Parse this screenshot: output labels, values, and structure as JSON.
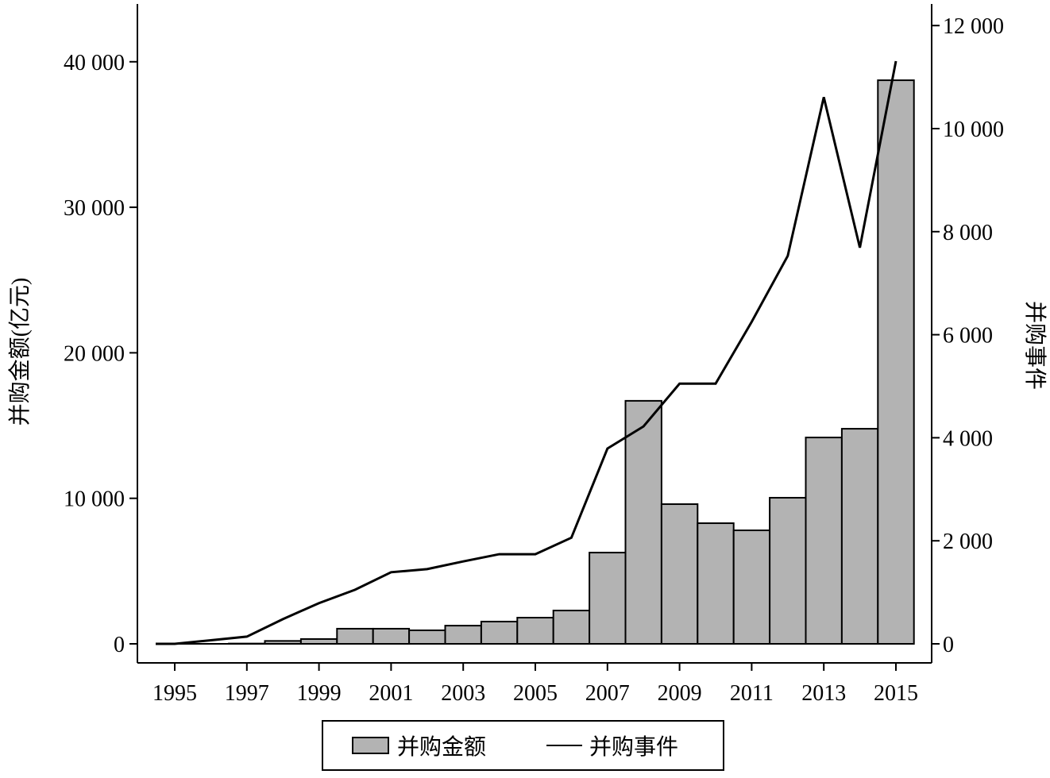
{
  "chart_data": {
    "type": "bar+line",
    "categories": [
      "1995",
      "1996",
      "1997",
      "1998",
      "1999",
      "2000",
      "2001",
      "2002",
      "2003",
      "2004",
      "2005",
      "2006",
      "2007",
      "2008",
      "2009",
      "2010",
      "2011",
      "2012",
      "2013",
      "2014",
      "2015"
    ],
    "x_tick_labels": [
      "1995",
      "1997",
      "1999",
      "2001",
      "2003",
      "2005",
      "2007",
      "2009",
      "2011",
      "2013",
      "2015"
    ],
    "series": [
      {
        "name": "并购金额",
        "type": "bar",
        "axis": "left",
        "color": "#b3b3b3",
        "values": [
          0,
          0,
          20,
          200,
          330,
          1040,
          1040,
          930,
          1250,
          1530,
          1800,
          2290,
          6270,
          16700,
          9600,
          8290,
          7800,
          10040,
          14180,
          14780,
          38730
        ]
      },
      {
        "name": "并购事件",
        "type": "line",
        "axis": "right",
        "color": "#000000",
        "values": [
          0,
          70,
          140,
          480,
          790,
          1050,
          1390,
          1450,
          1600,
          1740,
          1740,
          2060,
          3790,
          4220,
          5050,
          5050,
          6250,
          7530,
          10610,
          7690,
          11310
        ]
      }
    ],
    "left_axis": {
      "label": "并购金额(亿元)",
      "ylim": [
        0,
        43000
      ],
      "ticks": [
        0,
        10000,
        20000,
        30000,
        40000
      ],
      "tick_labels": [
        "0",
        "10 000",
        "20 000",
        "30 000",
        "40 000"
      ]
    },
    "right_axis": {
      "label": "并购事件",
      "ylim": [
        0,
        12500
      ],
      "ticks": [
        0,
        2000,
        4000,
        6000,
        8000,
        10000,
        12000
      ],
      "tick_labels": [
        "0",
        "2 000",
        "4 000",
        "6 000",
        "8 000",
        "10 000",
        "12 000"
      ]
    },
    "legend": {
      "placement": "bottom-center",
      "entries": [
        "并购金额",
        "并购事件"
      ]
    },
    "grid": false
  }
}
